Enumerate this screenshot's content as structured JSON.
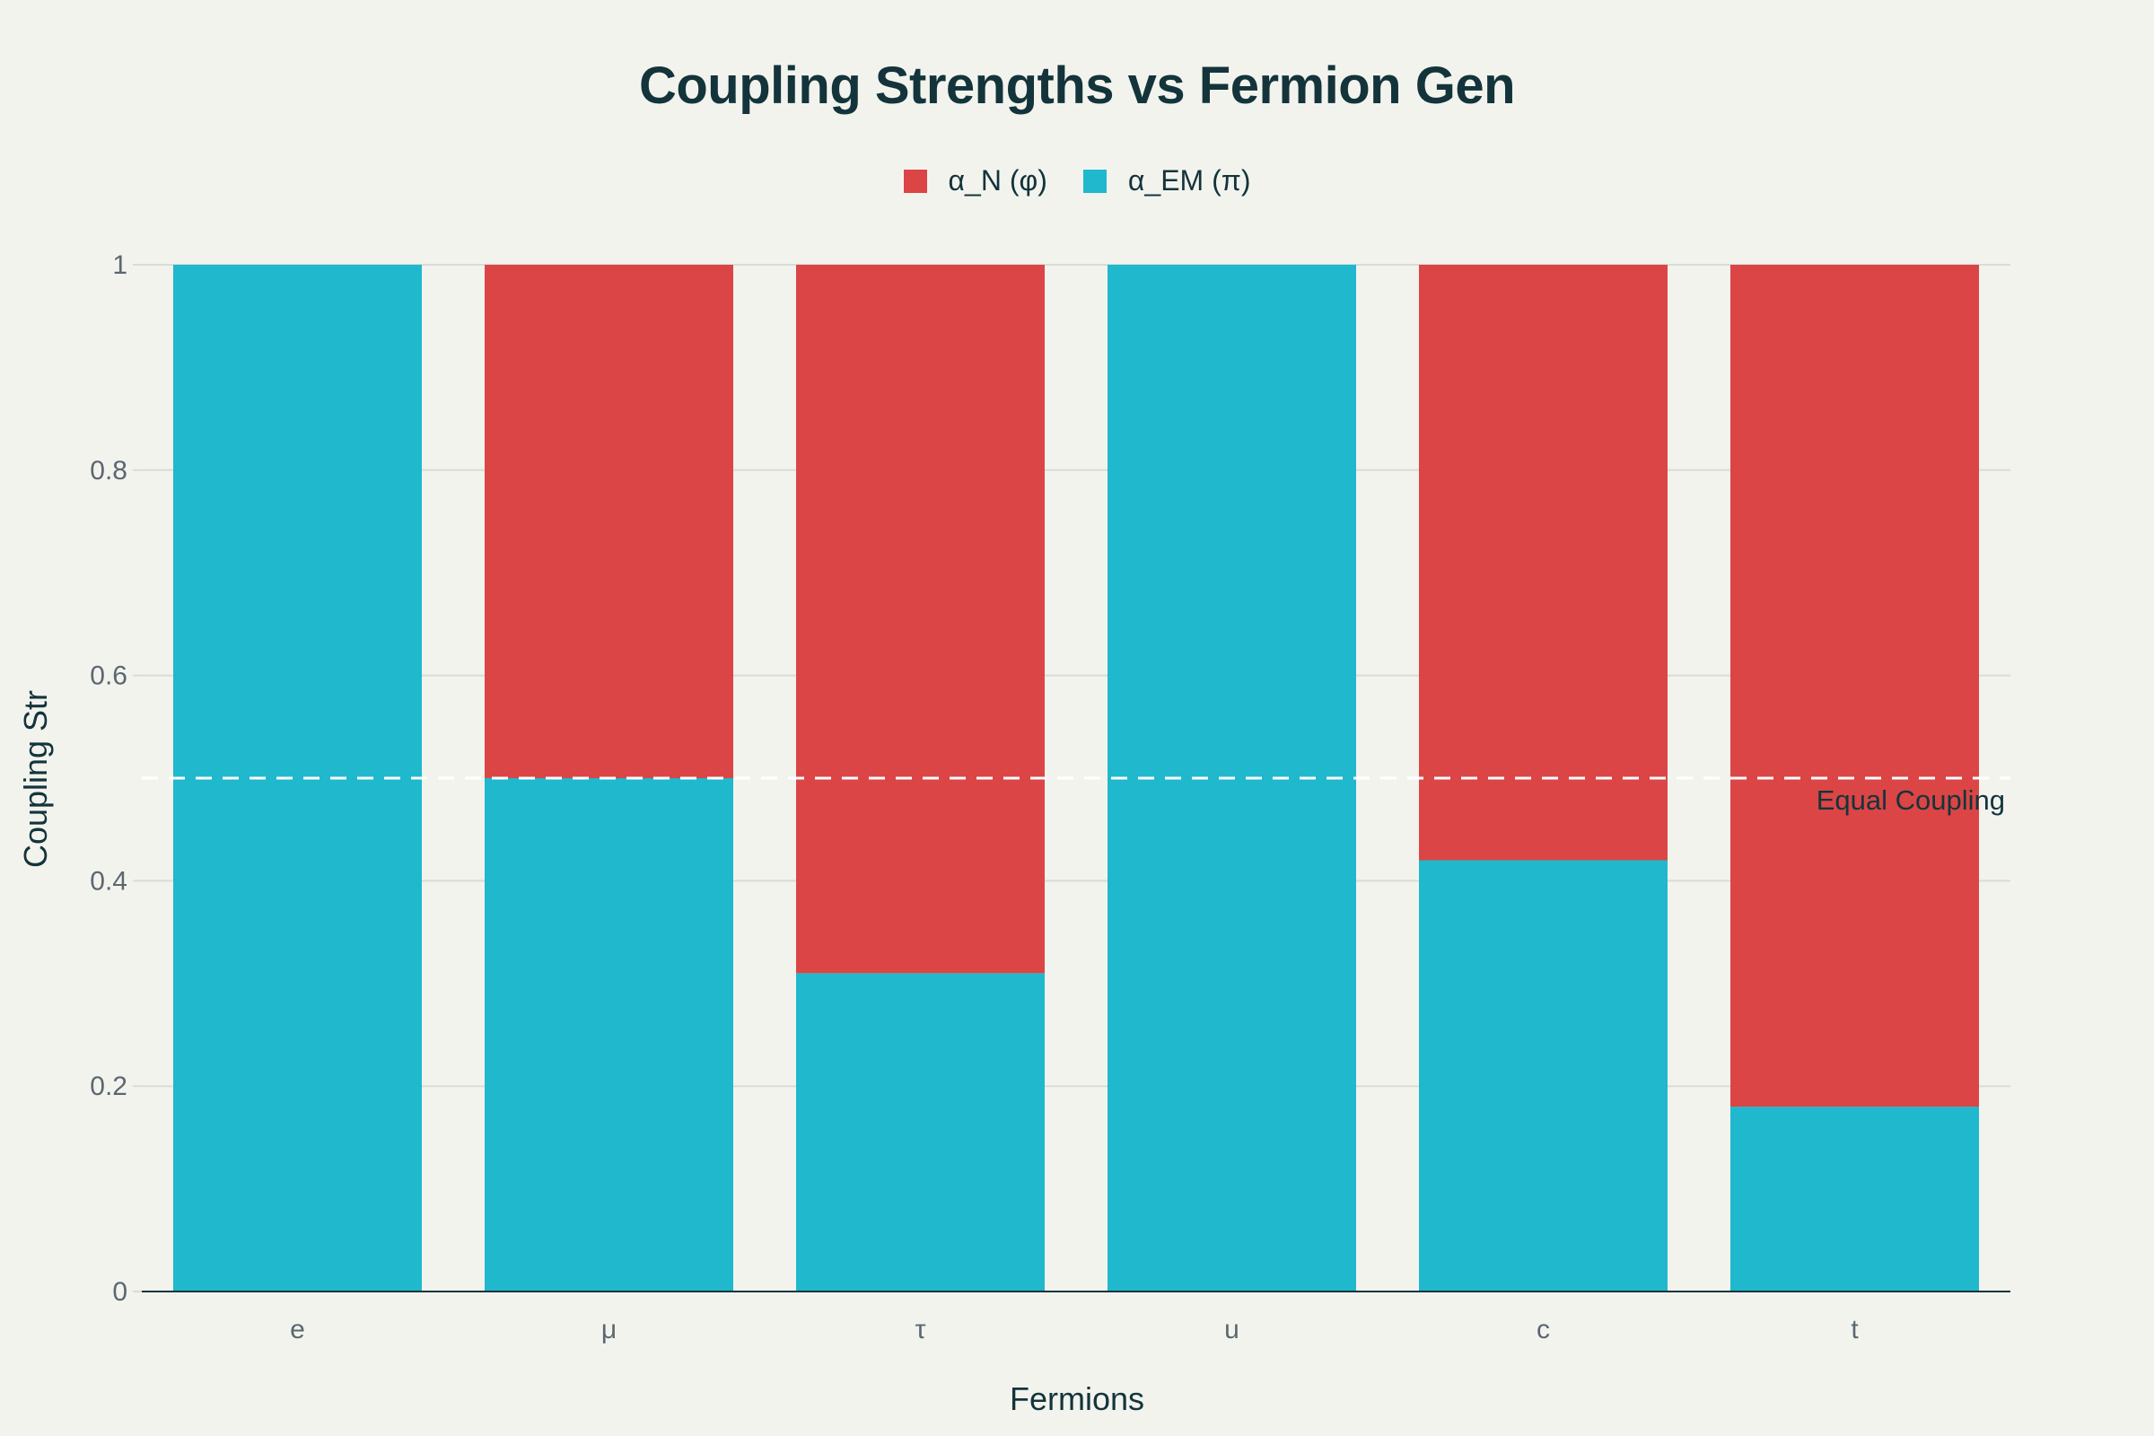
{
  "chart_data": {
    "type": "bar",
    "stacked": true,
    "title": "Coupling Strengths vs Fermion Gen",
    "xlabel": "Fermions",
    "ylabel": "Coupling Str",
    "categories": [
      "e",
      "μ",
      "τ",
      "u",
      "c",
      "t"
    ],
    "series": [
      {
        "name": "α_EM (π)",
        "color": "#1fb8cd",
        "values": [
          1.0,
          0.5,
          0.31,
          1.0,
          0.42,
          0.18
        ]
      },
      {
        "name": "α_N (φ)",
        "color": "#db4545",
        "values": [
          0.0,
          0.5,
          0.69,
          0.0,
          0.58,
          0.82
        ]
      }
    ],
    "legend_order": [
      "α_N (φ)",
      "α_EM (π)"
    ],
    "legend_position": "top-center",
    "ylim": [
      0,
      1
    ],
    "yticks": [
      0,
      0.2,
      0.4,
      0.6,
      0.8,
      1
    ],
    "ytick_labels": [
      "0",
      "0.2",
      "0.4",
      "0.6",
      "0.8",
      "1"
    ],
    "grid": true,
    "reference_line": {
      "y": 0.5,
      "style": "dashed",
      "color": "#ffffff",
      "label": "Equal Coupling"
    }
  }
}
